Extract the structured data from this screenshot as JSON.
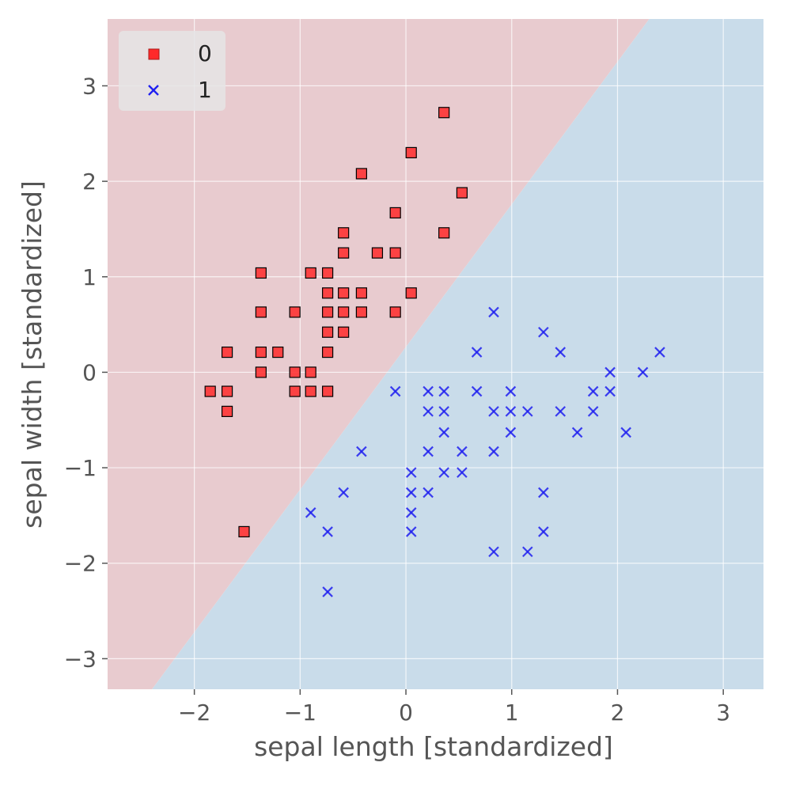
{
  "chart_data": {
    "type": "scatter",
    "title": "",
    "xlabel": "sepal length [standardized]",
    "ylabel": "sepal width [standardized]",
    "xlim": [
      -2.82,
      3.38
    ],
    "ylim": [
      -3.32,
      3.7
    ],
    "xticks": [
      -2,
      -1,
      0,
      1,
      2,
      3
    ],
    "yticks": [
      -3,
      -2,
      -1,
      0,
      1,
      2,
      3
    ],
    "xtick_labels": [
      "−2",
      "−1",
      "0",
      "1",
      "2",
      "3"
    ],
    "ytick_labels": [
      "−3",
      "−2",
      "−1",
      "0",
      "1",
      "2",
      "3"
    ],
    "grid": true,
    "legend_position": "top-left",
    "decision_boundary": {
      "points": [
        [
          -2.4,
          -3.32
        ],
        [
          2.3,
          3.7
        ]
      ],
      "region_colors": {
        "0": "#e8cbcf",
        "1": "#c9dcea"
      }
    },
    "series": [
      {
        "name": "0",
        "marker": "square",
        "color": "#ff2a2a",
        "edge_color": "#000000",
        "points": [
          [
            0.36,
            2.72
          ],
          [
            0.05,
            2.3
          ],
          [
            -0.42,
            2.08
          ],
          [
            0.53,
            1.88
          ],
          [
            -0.1,
            1.67
          ],
          [
            -0.59,
            1.46
          ],
          [
            0.36,
            1.46
          ],
          [
            -0.59,
            1.25
          ],
          [
            -0.27,
            1.25
          ],
          [
            -0.1,
            1.25
          ],
          [
            -1.37,
            1.04
          ],
          [
            -0.9,
            1.04
          ],
          [
            -0.74,
            1.04
          ],
          [
            -0.74,
            0.83
          ],
          [
            -0.59,
            0.83
          ],
          [
            -0.42,
            0.83
          ],
          [
            0.05,
            0.83
          ],
          [
            -1.37,
            0.63
          ],
          [
            -1.05,
            0.63
          ],
          [
            -0.74,
            0.63
          ],
          [
            -0.59,
            0.63
          ],
          [
            -0.42,
            0.63
          ],
          [
            -0.1,
            0.63
          ],
          [
            -0.74,
            0.42
          ],
          [
            -0.59,
            0.42
          ],
          [
            -1.69,
            0.21
          ],
          [
            -1.37,
            0.21
          ],
          [
            -1.21,
            0.21
          ],
          [
            -0.74,
            0.21
          ],
          [
            -1.37,
            0.0
          ],
          [
            -1.05,
            0.0
          ],
          [
            -0.9,
            0.0
          ],
          [
            -1.85,
            -0.2
          ],
          [
            -1.69,
            -0.2
          ],
          [
            -1.05,
            -0.2
          ],
          [
            -0.9,
            -0.2
          ],
          [
            -0.74,
            -0.2
          ],
          [
            -1.69,
            -0.41
          ],
          [
            -1.53,
            -1.67
          ]
        ]
      },
      {
        "name": "1",
        "marker": "x",
        "color": "#1f1ff0",
        "points": [
          [
            0.83,
            0.63
          ],
          [
            1.3,
            0.42
          ],
          [
            0.67,
            0.21
          ],
          [
            1.46,
            0.21
          ],
          [
            2.4,
            0.21
          ],
          [
            1.93,
            0.0
          ],
          [
            2.24,
            0.0
          ],
          [
            -0.1,
            -0.2
          ],
          [
            0.21,
            -0.2
          ],
          [
            0.36,
            -0.2
          ],
          [
            0.67,
            -0.2
          ],
          [
            0.99,
            -0.2
          ],
          [
            1.77,
            -0.2
          ],
          [
            1.93,
            -0.2
          ],
          [
            0.21,
            -0.41
          ],
          [
            0.36,
            -0.41
          ],
          [
            0.83,
            -0.41
          ],
          [
            0.99,
            -0.41
          ],
          [
            1.15,
            -0.41
          ],
          [
            1.46,
            -0.41
          ],
          [
            1.77,
            -0.41
          ],
          [
            0.36,
            -0.63
          ],
          [
            0.99,
            -0.63
          ],
          [
            1.62,
            -0.63
          ],
          [
            2.08,
            -0.63
          ],
          [
            -0.42,
            -0.83
          ],
          [
            0.21,
            -0.83
          ],
          [
            0.53,
            -0.83
          ],
          [
            0.83,
            -0.83
          ],
          [
            0.05,
            -1.05
          ],
          [
            0.36,
            -1.05
          ],
          [
            0.53,
            -1.05
          ],
          [
            -0.59,
            -1.26
          ],
          [
            0.05,
            -1.26
          ],
          [
            0.21,
            -1.26
          ],
          [
            1.3,
            -1.26
          ],
          [
            -0.9,
            -1.47
          ],
          [
            0.05,
            -1.47
          ],
          [
            -0.74,
            -1.67
          ],
          [
            0.05,
            -1.67
          ],
          [
            1.3,
            -1.67
          ],
          [
            0.83,
            -1.88
          ],
          [
            1.15,
            -1.88
          ],
          [
            -0.74,
            -2.3
          ]
        ]
      }
    ]
  }
}
